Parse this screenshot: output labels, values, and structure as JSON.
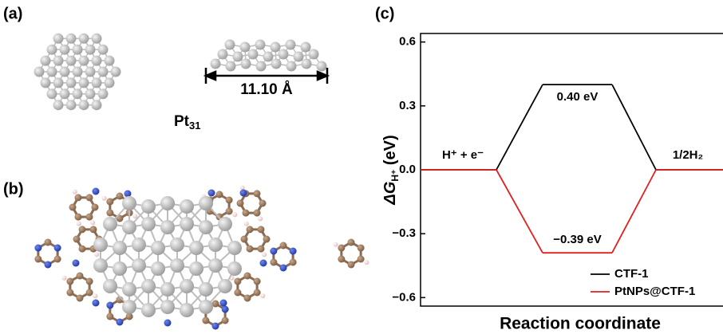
{
  "panels": {
    "a": "(a)",
    "b": "(b)",
    "c": "(c)",
    "dimension": "11.10 Å",
    "cluster": [
      "Pt",
      "31"
    ]
  },
  "chart_data": {
    "type": "energy-profile",
    "ylabel": [
      "ΔG",
      "H⁺",
      " (eV)"
    ],
    "xlabel": "Reaction coordinate",
    "categories": [
      "H⁺ + e⁻",
      null,
      "1/2H₂"
    ],
    "series": [
      {
        "name": "CTF-1",
        "color": "#000000",
        "values": [
          0,
          0.4,
          0
        ],
        "value_labels": [
          null,
          "0.40 eV",
          null
        ]
      },
      {
        "name": "PtNPs@CTF-1",
        "color": "#e0201e",
        "values": [
          0,
          -0.39,
          0
        ],
        "value_labels": [
          null,
          "−0.39 eV",
          null
        ]
      }
    ],
    "ylim": [
      -0.64,
      0.64
    ],
    "yticks": [
      0.6,
      0.3,
      {
        "value": 0,
        "label": "0.0"
      },
      {
        "value": -0.3,
        "label": "−0.3"
      },
      {
        "value": -0.6,
        "label": "−0.6"
      }
    ],
    "legend": "lower right"
  }
}
